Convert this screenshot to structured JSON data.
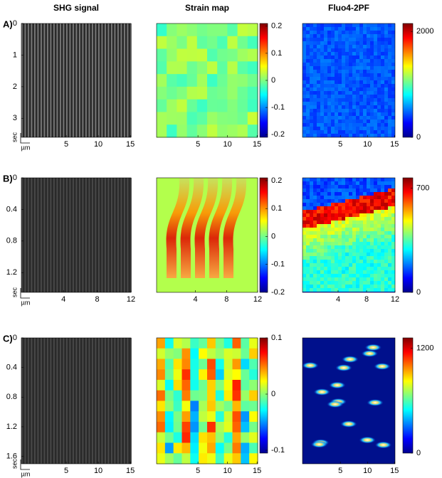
{
  "columns": [
    "SHG signal",
    "Strain map",
    "Fluo4-2PF"
  ],
  "rows": [
    {
      "label": "A)",
      "y_unit": "sec",
      "x_unit": "µm",
      "ylim": [
        0,
        3.6
      ],
      "yticks": [
        0,
        1,
        2,
        3
      ],
      "xlim": [
        -2,
        15.1
      ],
      "xticks": [
        5,
        10,
        15
      ],
      "strain_lim": [
        -0.21,
        0.21
      ],
      "strain_ticks": [
        0.2,
        0.1,
        0,
        -0.1,
        -0.2
      ],
      "fluo_lim": [
        0,
        2150
      ],
      "fluo_ticks": [
        2000,
        0
      ]
    },
    {
      "label": "B)",
      "y_unit": "sec",
      "x_unit": "µm",
      "ylim": [
        0,
        1.45
      ],
      "yticks": [
        0,
        0.4,
        0.8,
        1.2
      ],
      "xlim": [
        -1,
        12
      ],
      "xticks": [
        4,
        8,
        12
      ],
      "strain_lim": [
        -0.2,
        0.21
      ],
      "strain_ticks": [
        0.2,
        0.1,
        0,
        -0.1,
        -0.2
      ],
      "fluo_lim": [
        0,
        770
      ],
      "fluo_ticks": [
        700,
        0
      ]
    },
    {
      "label": "C)",
      "y_unit": "sec",
      "x_unit": "µm",
      "ylim": [
        0,
        1.7
      ],
      "yticks": [
        0,
        0.4,
        0.8,
        1.2,
        1.6
      ],
      "xlim": [
        -2,
        15.1
      ],
      "xticks": [
        5,
        10,
        15
      ],
      "strain_lim": [
        -0.105,
        0.1
      ],
      "strain_ticks": [
        0.1,
        0,
        -0.1
      ],
      "fluo_lim": [
        0,
        1320
      ],
      "fluo_ticks": [
        1200,
        0
      ]
    }
  ]
}
